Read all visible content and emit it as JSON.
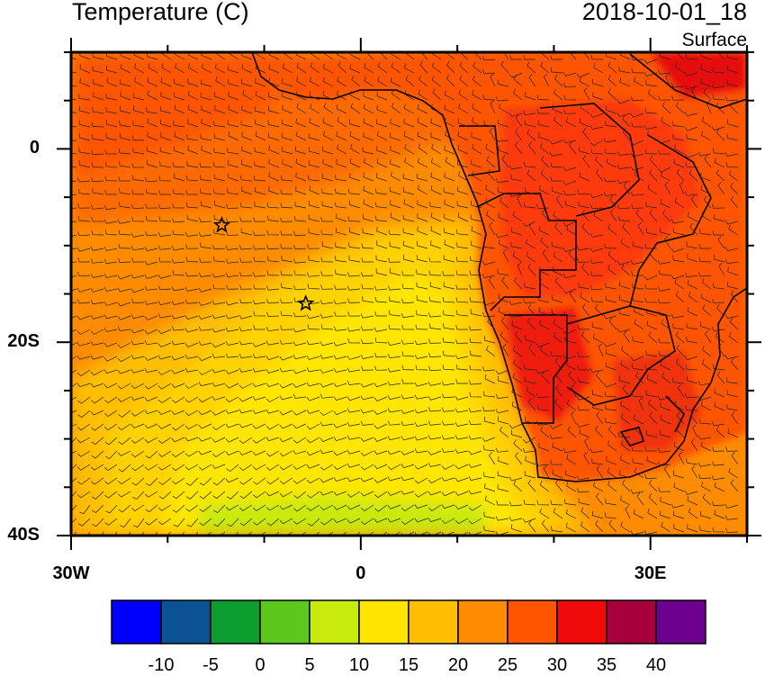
{
  "header": {
    "title": "Temperature (C)",
    "date": "2018-10-01_18",
    "level": "Surface"
  },
  "map": {
    "type": "temperature-contour-with-wind-barbs",
    "lon_range": [
      -30,
      40
    ],
    "lat_range": [
      -40,
      10
    ],
    "y_ticks": [
      {
        "lat": 0,
        "label": "0"
      },
      {
        "lat": -20,
        "label": "20S"
      },
      {
        "lat": -40,
        "label": "40S"
      }
    ],
    "x_ticks": [
      {
        "lon": -30,
        "label": "30W"
      },
      {
        "lon": 0,
        "label": "0"
      },
      {
        "lon": 30,
        "label": "30E"
      }
    ],
    "markers": [
      {
        "lon": -14.4,
        "lat": -7.9,
        "symbol": "star"
      },
      {
        "lon": -5.7,
        "lat": -16.0,
        "symbol": "star"
      }
    ]
  },
  "colorbar": {
    "colors": [
      "#0000ff",
      "#0a5294",
      "#0d9d2e",
      "#5bc81e",
      "#c8ea0c",
      "#ffe600",
      "#ffbf00",
      "#ff8c00",
      "#ff5500",
      "#f00a0a",
      "#a8003c",
      "#6e0090"
    ],
    "labels": [
      "-10",
      "-5",
      "0",
      "5",
      "10",
      "15",
      "20",
      "25",
      "30",
      "35",
      "40"
    ]
  },
  "chart_data": {
    "type": "heatmap",
    "title": "Temperature (C)",
    "subtitle": "2018-10-01_18",
    "ylabel": "",
    "xlabel": "",
    "levels": [
      -10,
      -5,
      0,
      5,
      10,
      15,
      20,
      25,
      30,
      35,
      40
    ]
  }
}
